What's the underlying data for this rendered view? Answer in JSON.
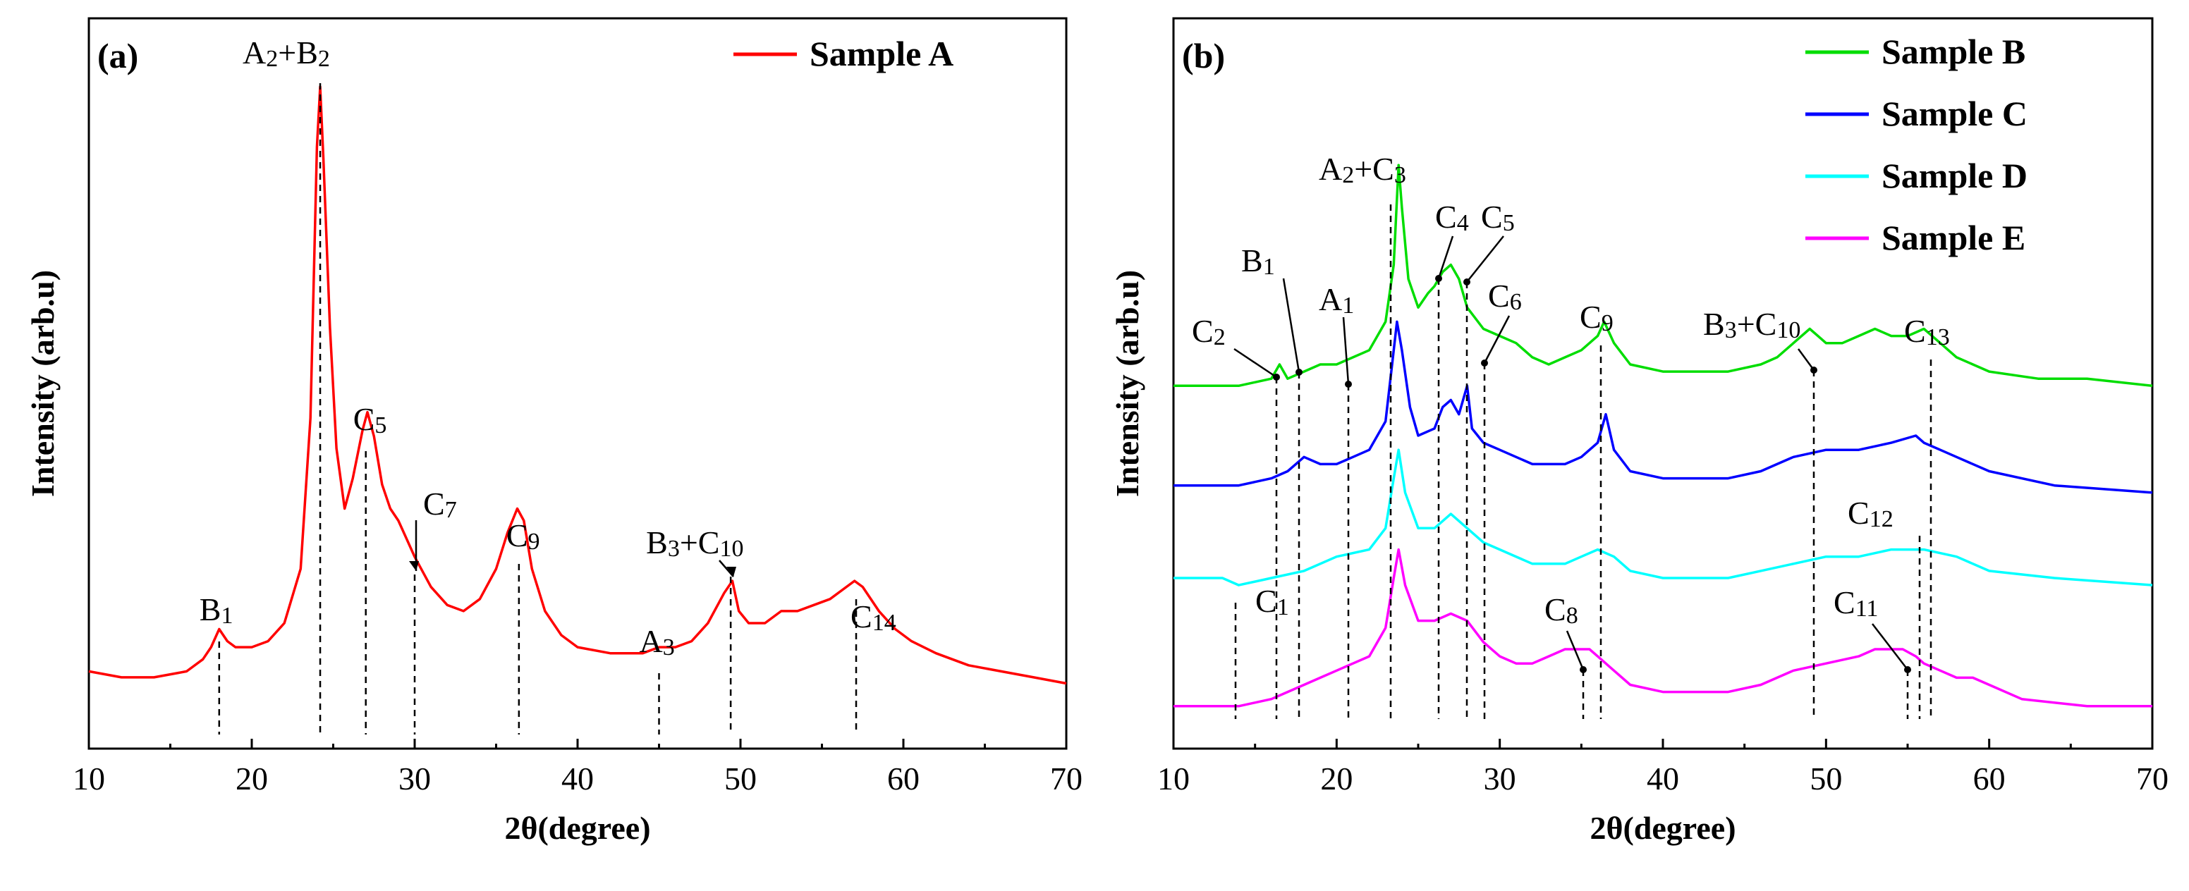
{
  "chart_data": [
    {
      "type": "line",
      "panel_label": "(a)",
      "xlabel": "2θ(degree)",
      "ylabel": "Intensity (arb.u)",
      "xlim": [
        10,
        70
      ],
      "ylim": [
        0,
        100
      ],
      "grid": false,
      "legend_position": "top-right",
      "x_ticks": [
        10,
        20,
        30,
        40,
        50,
        60,
        70
      ],
      "series": [
        {
          "name": "Sample A",
          "color": "#ff0000",
          "points": [
            [
              10,
              3
            ],
            [
              12,
              2
            ],
            [
              14,
              2
            ],
            [
              16,
              3
            ],
            [
              17,
              5
            ],
            [
              17.5,
              7
            ],
            [
              18,
              10
            ],
            [
              18.5,
              8
            ],
            [
              19,
              7
            ],
            [
              20,
              7
            ],
            [
              21,
              8
            ],
            [
              22,
              11
            ],
            [
              23,
              20
            ],
            [
              23.6,
              45
            ],
            [
              24,
              90
            ],
            [
              24.2,
              100
            ],
            [
              24.4,
              88
            ],
            [
              24.8,
              60
            ],
            [
              25.2,
              40
            ],
            [
              25.7,
              30
            ],
            [
              26.2,
              35
            ],
            [
              26.8,
              43
            ],
            [
              27.1,
              46
            ],
            [
              27.5,
              42
            ],
            [
              28,
              34
            ],
            [
              28.5,
              30
            ],
            [
              29,
              28
            ],
            [
              29.5,
              25
            ],
            [
              30,
              22
            ],
            [
              31,
              17
            ],
            [
              32,
              14
            ],
            [
              33,
              13
            ],
            [
              34,
              15
            ],
            [
              35,
              20
            ],
            [
              35.7,
              26
            ],
            [
              36.3,
              30
            ],
            [
              36.7,
              28
            ],
            [
              37.2,
              20
            ],
            [
              38,
              13
            ],
            [
              39,
              9
            ],
            [
              40,
              7
            ],
            [
              42,
              6
            ],
            [
              44,
              6
            ],
            [
              45,
              7
            ],
            [
              46,
              7
            ],
            [
              47,
              8
            ],
            [
              48,
              11
            ],
            [
              49,
              16
            ],
            [
              49.5,
              18
            ],
            [
              49.9,
              13
            ],
            [
              50.5,
              11
            ],
            [
              51.5,
              11
            ],
            [
              52.5,
              13
            ],
            [
              53.5,
              13
            ],
            [
              54.5,
              14
            ],
            [
              55.5,
              15
            ],
            [
              56.5,
              17
            ],
            [
              57,
              18
            ],
            [
              57.5,
              17
            ],
            [
              58.5,
              13
            ],
            [
              59.5,
              10
            ],
            [
              60.5,
              8
            ],
            [
              62,
              6
            ],
            [
              64,
              4
            ],
            [
              66,
              3
            ],
            [
              68,
              2
            ],
            [
              70,
              1
            ]
          ]
        }
      ],
      "peak_labels": [
        {
          "main": "B",
          "sub": "1",
          "x": 18.0
        },
        {
          "main": "A",
          "sub": "2",
          "main2": "+B",
          "sub2": "2",
          "x": 24.2
        },
        {
          "main": "C",
          "sub": "5",
          "x": 27.0
        },
        {
          "main": "C",
          "sub": "7",
          "x": 30.0
        },
        {
          "main": "C",
          "sub": "9",
          "x": 36.4
        },
        {
          "main": "A",
          "sub": "3",
          "x": 45.0
        },
        {
          "main": "B",
          "sub": "3",
          "main2": "+C",
          "sub2": "10",
          "x": 49.4
        },
        {
          "main": "C",
          "sub": "14",
          "x": 57.1
        }
      ]
    },
    {
      "type": "line",
      "panel_label": "(b)",
      "xlabel": "2θ(degree)",
      "ylabel": "Intensity (arb.u)",
      "xlim": [
        10,
        70
      ],
      "ylim": [
        0,
        100
      ],
      "grid": false,
      "legend_position": "top-right",
      "x_ticks": [
        10,
        20,
        30,
        40,
        50,
        60,
        70
      ],
      "series": [
        {
          "name": "Sample B",
          "color": "#00dd00",
          "points": [
            [
              10,
              47
            ],
            [
              14,
              47
            ],
            [
              16,
              48
            ],
            [
              16.5,
              50
            ],
            [
              17,
              48
            ],
            [
              18,
              49
            ],
            [
              19,
              50
            ],
            [
              20,
              50
            ],
            [
              21,
              51
            ],
            [
              22,
              52
            ],
            [
              23,
              56
            ],
            [
              23.5,
              64
            ],
            [
              23.8,
              78
            ],
            [
              24,
              72
            ],
            [
              24.4,
              62
            ],
            [
              25,
              58
            ],
            [
              25.6,
              60
            ],
            [
              26,
              61
            ],
            [
              26.5,
              63
            ],
            [
              27,
              64
            ],
            [
              27.5,
              62
            ],
            [
              28,
              58
            ],
            [
              29,
              55
            ],
            [
              30,
              54
            ],
            [
              31,
              53
            ],
            [
              32,
              51
            ],
            [
              33,
              50
            ],
            [
              34,
              51
            ],
            [
              35,
              52
            ],
            [
              36,
              54
            ],
            [
              36.4,
              56
            ],
            [
              37,
              53
            ],
            [
              38,
              50
            ],
            [
              40,
              49
            ],
            [
              44,
              49
            ],
            [
              46,
              50
            ],
            [
              47,
              51
            ],
            [
              48,
              53
            ],
            [
              49,
              55
            ],
            [
              49.5,
              54
            ],
            [
              50,
              53
            ],
            [
              51,
              53
            ],
            [
              52,
              54
            ],
            [
              53,
              55
            ],
            [
              54,
              54
            ],
            [
              55,
              54
            ],
            [
              56,
              55
            ],
            [
              56.5,
              54
            ],
            [
              57,
              53
            ],
            [
              58,
              51
            ],
            [
              60,
              49
            ],
            [
              63,
              48
            ],
            [
              66,
              48
            ],
            [
              70,
              47
            ]
          ]
        },
        {
          "name": "Sample C",
          "color": "#0000ff",
          "points": [
            [
              10,
              33
            ],
            [
              14,
              33
            ],
            [
              16,
              34
            ],
            [
              17,
              35
            ],
            [
              17.5,
              36
            ],
            [
              18,
              37
            ],
            [
              19,
              36
            ],
            [
              20,
              36
            ],
            [
              21,
              37
            ],
            [
              22,
              38
            ],
            [
              23,
              42
            ],
            [
              23.4,
              50
            ],
            [
              23.7,
              56
            ],
            [
              24,
              52
            ],
            [
              24.5,
              44
            ],
            [
              25,
              40
            ],
            [
              26,
              41
            ],
            [
              26.5,
              44
            ],
            [
              27,
              45
            ],
            [
              27.5,
              43
            ],
            [
              28,
              47
            ],
            [
              28.3,
              41
            ],
            [
              29,
              39
            ],
            [
              30,
              38
            ],
            [
              32,
              36
            ],
            [
              34,
              36
            ],
            [
              35,
              37
            ],
            [
              36,
              39
            ],
            [
              36.5,
              43
            ],
            [
              37,
              38
            ],
            [
              38,
              35
            ],
            [
              40,
              34
            ],
            [
              44,
              34
            ],
            [
              46,
              35
            ],
            [
              47,
              36
            ],
            [
              48,
              37
            ],
            [
              50,
              38
            ],
            [
              52,
              38
            ],
            [
              54,
              39
            ],
            [
              55.5,
              40
            ],
            [
              56,
              39
            ],
            [
              57,
              38
            ],
            [
              58,
              37
            ],
            [
              60,
              35
            ],
            [
              64,
              33
            ],
            [
              70,
              32
            ]
          ]
        },
        {
          "name": "Sample D",
          "color": "#00ffff",
          "points": [
            [
              10,
              20
            ],
            [
              13,
              20
            ],
            [
              14,
              19
            ],
            [
              16,
              20
            ],
            [
              18,
              21
            ],
            [
              20,
              23
            ],
            [
              22,
              24
            ],
            [
              23,
              27
            ],
            [
              23.5,
              34
            ],
            [
              23.8,
              38
            ],
            [
              24.2,
              32
            ],
            [
              25,
              27
            ],
            [
              26,
              27
            ],
            [
              27,
              29
            ],
            [
              28,
              27
            ],
            [
              29,
              25
            ],
            [
              30,
              24
            ],
            [
              32,
              22
            ],
            [
              34,
              22
            ],
            [
              35,
              23
            ],
            [
              36,
              24
            ],
            [
              37,
              23
            ],
            [
              38,
              21
            ],
            [
              40,
              20
            ],
            [
              44,
              20
            ],
            [
              46,
              21
            ],
            [
              48,
              22
            ],
            [
              50,
              23
            ],
            [
              52,
              23
            ],
            [
              54,
              24
            ],
            [
              55.5,
              24
            ],
            [
              56,
              24
            ],
            [
              58,
              23
            ],
            [
              60,
              21
            ],
            [
              64,
              20
            ],
            [
              70,
              19
            ]
          ]
        },
        {
          "name": "Sample E",
          "color": "#ff00ff",
          "points": [
            [
              10,
              2
            ],
            [
              13,
              2
            ],
            [
              14,
              2
            ],
            [
              16,
              3
            ],
            [
              17,
              4
            ],
            [
              18,
              5
            ],
            [
              19,
              6
            ],
            [
              20,
              7
            ],
            [
              21,
              8
            ],
            [
              22,
              9
            ],
            [
              23,
              13
            ],
            [
              23.5,
              20
            ],
            [
              23.8,
              24
            ],
            [
              24.2,
              19
            ],
            [
              25,
              14
            ],
            [
              26,
              14
            ],
            [
              27,
              15
            ],
            [
              28,
              14
            ],
            [
              29,
              11
            ],
            [
              30,
              9
            ],
            [
              31,
              8
            ],
            [
              32,
              8
            ],
            [
              33,
              9
            ],
            [
              34,
              10
            ],
            [
              35,
              10
            ],
            [
              35.5,
              10
            ],
            [
              36,
              9
            ],
            [
              37,
              7
            ],
            [
              38,
              5
            ],
            [
              40,
              4
            ],
            [
              44,
              4
            ],
            [
              46,
              5
            ],
            [
              48,
              7
            ],
            [
              50,
              8
            ],
            [
              52,
              9
            ],
            [
              53,
              10
            ],
            [
              54,
              10
            ],
            [
              54.7,
              10
            ],
            [
              55.5,
              9
            ],
            [
              56,
              8
            ],
            [
              57,
              7
            ],
            [
              58,
              6
            ],
            [
              59,
              6
            ],
            [
              60,
              5
            ],
            [
              62,
              3
            ],
            [
              66,
              2
            ],
            [
              70,
              2
            ]
          ]
        }
      ],
      "peak_labels": [
        {
          "main": "C",
          "sub": "1",
          "x": 13.8
        },
        {
          "main": "C",
          "sub": "2",
          "x": 16.4
        },
        {
          "main": "B",
          "sub": "1",
          "x": 17.9
        },
        {
          "main": "A",
          "sub": "1",
          "x": 20.9
        },
        {
          "main": "A",
          "sub": "2",
          "main2": "+C",
          "sub2": "3",
          "x": 23.8
        },
        {
          "main": "C",
          "sub": "4",
          "x": 25.7
        },
        {
          "main": "C",
          "sub": "5",
          "x": 27.0
        },
        {
          "main": "C",
          "sub": "6",
          "x": 28.1
        },
        {
          "main": "C",
          "sub": "8",
          "x": 35.0
        },
        {
          "main": "C",
          "sub": "9",
          "x": 36.4
        },
        {
          "main": "B",
          "sub": "3",
          "main2": "+C",
          "sub2": "10",
          "x": 49.3
        },
        {
          "main": "C",
          "sub": "11",
          "x": 54.7
        },
        {
          "main": "C",
          "sub": "12",
          "x": 55.6
        },
        {
          "main": "C",
          "sub": "13",
          "x": 56.4
        }
      ]
    }
  ]
}
